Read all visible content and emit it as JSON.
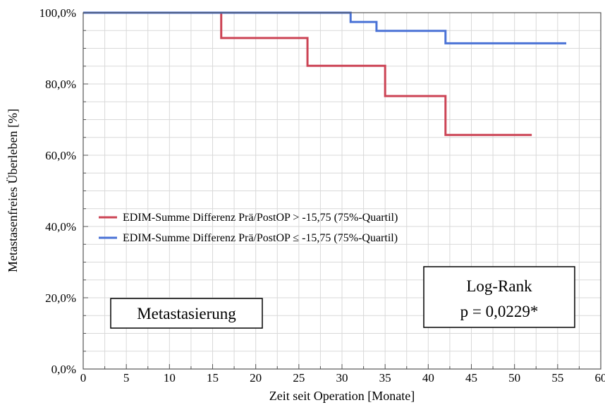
{
  "chart_data": {
    "type": "line",
    "step": true,
    "xlabel": "Zeit seit Operation [Monate]",
    "ylabel": "Metastasenfreies Überleben [%]",
    "xlim": [
      0,
      60
    ],
    "ylim": [
      0,
      100
    ],
    "xticks": [
      0,
      5,
      10,
      15,
      20,
      25,
      30,
      35,
      40,
      45,
      50,
      55,
      60
    ],
    "yticks": [
      0,
      20,
      40,
      60,
      80,
      100
    ],
    "x_tick_labels": [
      "0",
      "5",
      "10",
      "15",
      "20",
      "25",
      "30",
      "35",
      "40",
      "45",
      "50",
      "55",
      "60"
    ],
    "y_tick_labels": [
      "0,0%",
      "20,0%",
      "40,0%",
      "60,0%",
      "80,0%",
      "100,0%"
    ],
    "grid": true,
    "legend_position": "center-left",
    "series": [
      {
        "name": "EDIM-Summe Differenz Prä/PostOP > -15,75 (75%-Quartil)",
        "color": "#cc4455",
        "x": [
          0,
          16,
          26,
          35,
          42,
          52
        ],
        "y": [
          100,
          92.9,
          85.1,
          76.6,
          65.7,
          65.7
        ]
      },
      {
        "name": "EDIM-Summe Differenz Prä/PostOP ≤ -15,75 (75%-Quartil)",
        "color": "#4a72d6",
        "x": [
          0,
          31,
          34,
          42,
          56
        ],
        "y": [
          100,
          97.4,
          94.9,
          91.4,
          91.4
        ]
      }
    ],
    "annotations": {
      "metastasis_box": "Metastasierung",
      "logrank_title": "Log-Rank",
      "logrank_p": "p = 0,0229*"
    }
  }
}
